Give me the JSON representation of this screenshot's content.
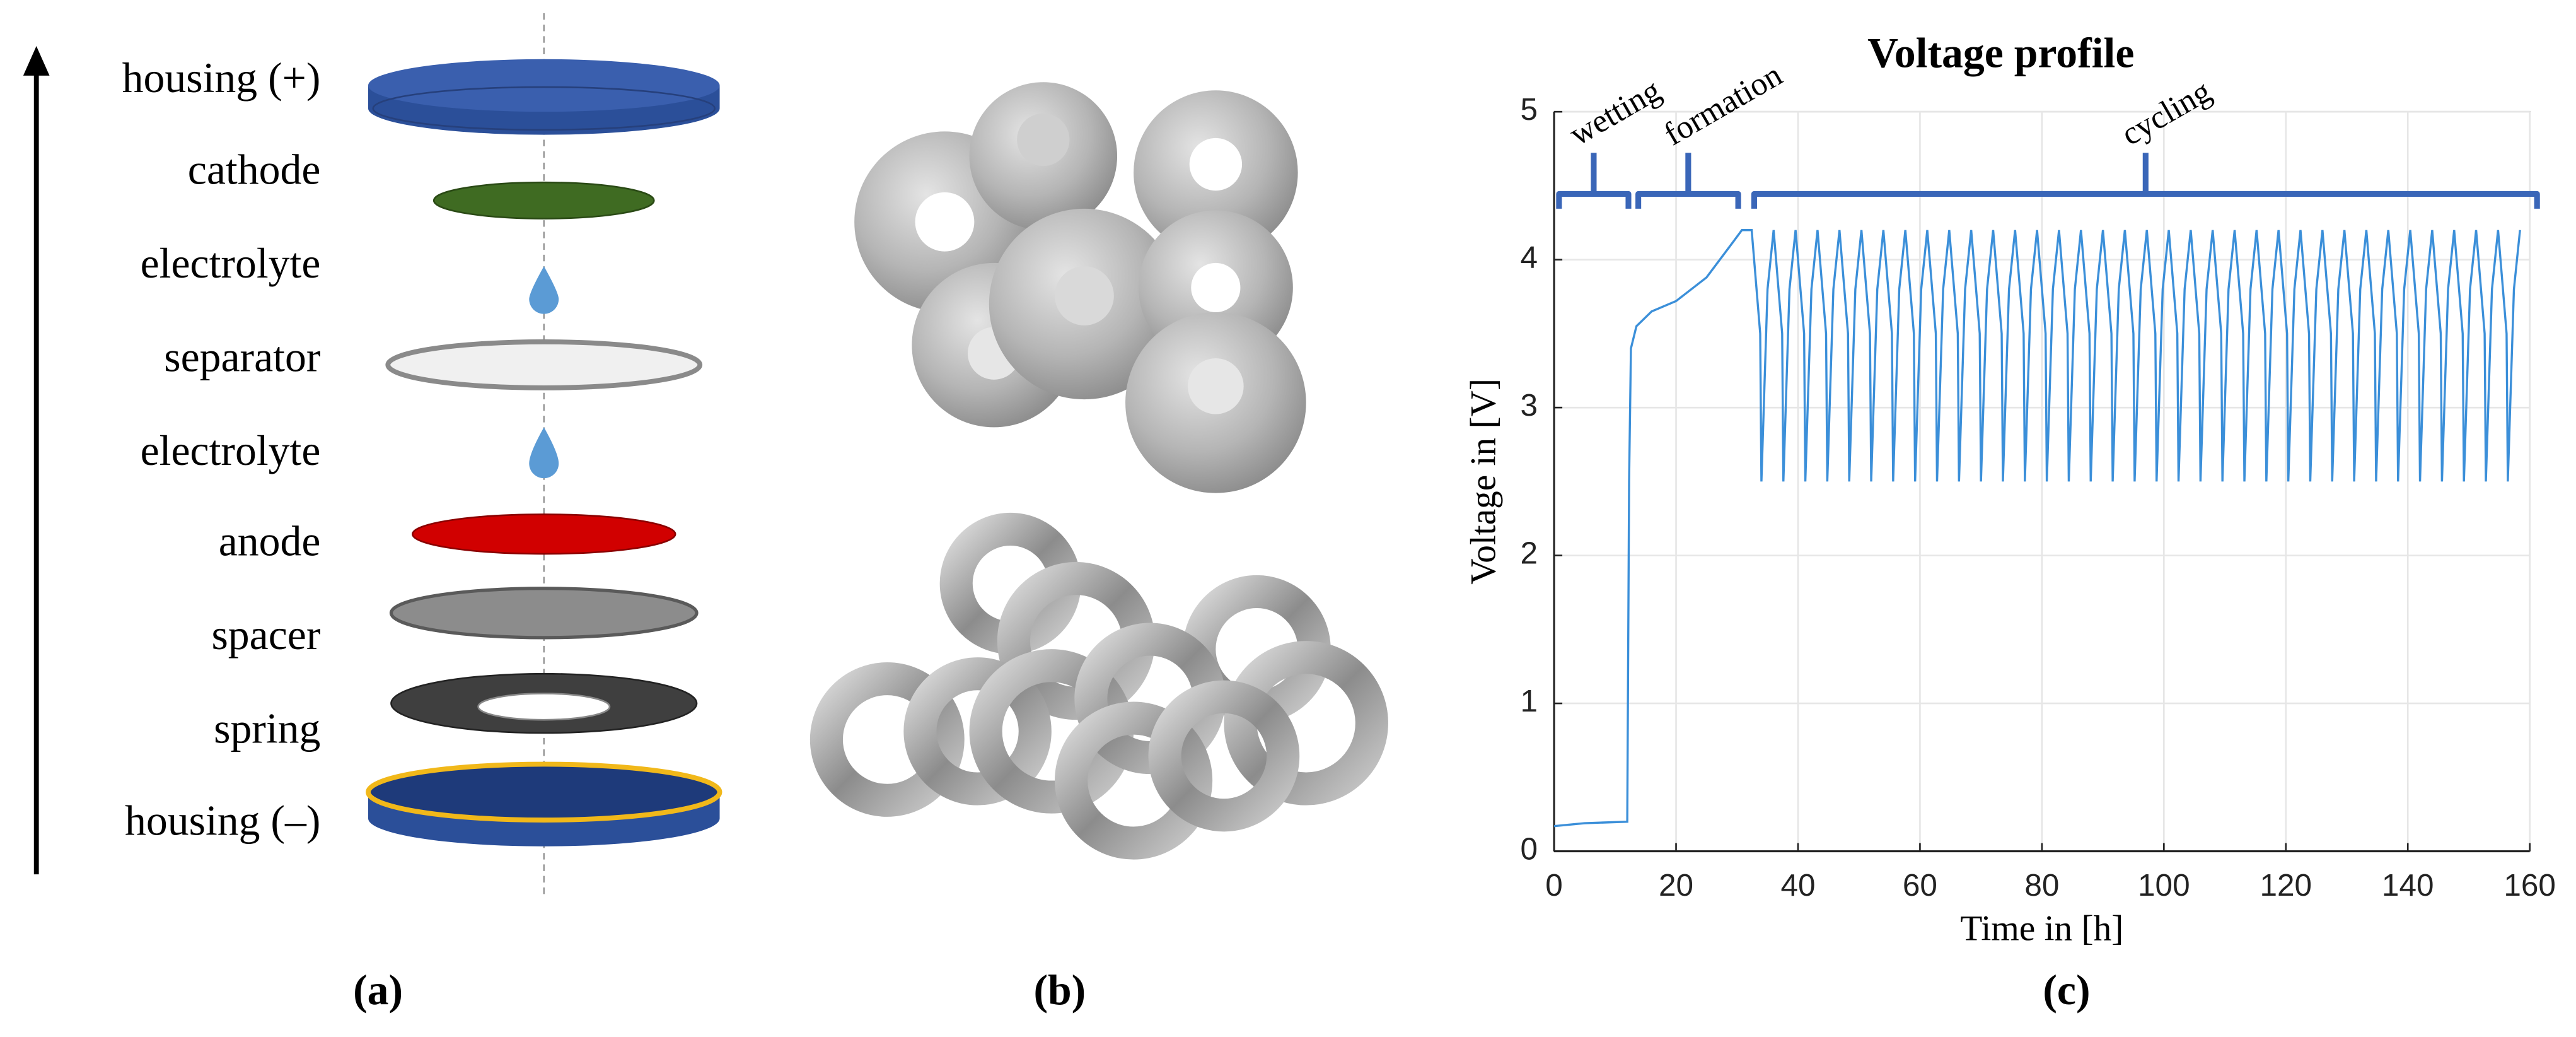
{
  "panels": [
    "(a)",
    "(b)",
    "(c)"
  ],
  "diagram": {
    "labels": [
      "housing (+)",
      "cathode",
      "electrolyte",
      "separator",
      "electrolyte",
      "anode",
      "spacer",
      "spring",
      "housing (–)"
    ]
  },
  "chart_data": {
    "type": "line",
    "title": "Voltage profile",
    "x_label": "Time in [h]",
    "y_label": "Voltage in [V]",
    "xlim": [
      0,
      160
    ],
    "xticks": [
      0,
      20,
      40,
      60,
      80,
      100,
      120,
      140,
      160
    ],
    "ylim": [
      0,
      5
    ],
    "yticks": [
      0,
      1,
      2,
      3,
      4,
      5
    ],
    "grid": true,
    "phases": [
      {
        "label": "wetting",
        "start": 0,
        "end": 13
      },
      {
        "label": "formation",
        "start": 13,
        "end": 31
      },
      {
        "label": "cycling",
        "start": 32,
        "end": 162
      }
    ],
    "series": [
      {
        "color": "#3b8fd9",
        "x": [
          0,
          5,
          12,
          12.3,
          12.6,
          13.5,
          16,
          20,
          25,
          29,
          30.8,
          32.4,
          33.8,
          34,
          35,
          36,
          37.4,
          37.6,
          38.6,
          39.6,
          41,
          41.2,
          42.2,
          43.2,
          44.6,
          44.8,
          45.8,
          46.8,
          48.2,
          48.4,
          49.4,
          50.4,
          51.8,
          52,
          53,
          54,
          55.4,
          55.6,
          56.6,
          57.6,
          59,
          59.2,
          60.2,
          61.2,
          62.6,
          62.8,
          63.8,
          64.8,
          66.2,
          66.4,
          67.4,
          68.4,
          69.8,
          70,
          71,
          72,
          73.4,
          73.6,
          74.6,
          75.6,
          77,
          77.2,
          78.2,
          79.2,
          80.6,
          80.8,
          81.8,
          82.8,
          84.2,
          84.4,
          85.4,
          86.4,
          87.8,
          88,
          89,
          90,
          91.4,
          91.6,
          92.6,
          93.6,
          95,
          95.2,
          96.2,
          97.2,
          98.6,
          98.8,
          99.8,
          100.8,
          102.2,
          102.4,
          103.4,
          104.4,
          105.8,
          106,
          107,
          108,
          109.4,
          109.6,
          110.6,
          111.6,
          113,
          113.2,
          114.2,
          115.2,
          116.6,
          116.8,
          117.8,
          118.8,
          120.2,
          120.4,
          121.4,
          122.4,
          123.8,
          124,
          125,
          126,
          127.4,
          127.6,
          128.6,
          129.6,
          131,
          131.2,
          132.2,
          133.2,
          134.6,
          134.8,
          135.8,
          136.8,
          138.2,
          138.4,
          139.4,
          140.4,
          141.8,
          142,
          143,
          144,
          145.4,
          145.6,
          146.6,
          147.6,
          149,
          149.2,
          150.2,
          151.2,
          152.6,
          152.8,
          153.8,
          154.8,
          156.2,
          156.4,
          157.4,
          158.4
        ],
        "values": [
          0.17,
          0.19,
          0.2,
          2.5,
          3.4,
          3.55,
          3.65,
          3.72,
          3.88,
          4.1,
          4.2,
          4.2,
          3.5,
          2.5,
          3.8,
          4.2,
          3.5,
          2.5,
          3.8,
          4.2,
          3.5,
          2.5,
          3.8,
          4.2,
          3.5,
          2.5,
          3.8,
          4.2,
          3.5,
          2.5,
          3.8,
          4.2,
          3.5,
          2.5,
          3.8,
          4.2,
          3.5,
          2.5,
          3.8,
          4.2,
          3.5,
          2.5,
          3.8,
          4.2,
          3.5,
          2.5,
          3.8,
          4.2,
          3.5,
          2.5,
          3.8,
          4.2,
          3.5,
          2.5,
          3.8,
          4.2,
          3.5,
          2.5,
          3.8,
          4.2,
          3.5,
          2.5,
          3.8,
          4.2,
          3.5,
          2.5,
          3.8,
          4.2,
          3.5,
          2.5,
          3.8,
          4.2,
          3.5,
          2.5,
          3.8,
          4.2,
          3.5,
          2.5,
          3.8,
          4.2,
          3.5,
          2.5,
          3.8,
          4.2,
          3.5,
          2.5,
          3.8,
          4.2,
          3.5,
          2.5,
          3.8,
          4.2,
          3.5,
          2.5,
          3.8,
          4.2,
          3.5,
          2.5,
          3.8,
          4.2,
          3.5,
          2.5,
          3.8,
          4.2,
          3.5,
          2.5,
          3.8,
          4.2,
          3.5,
          2.5,
          3.8,
          4.2,
          3.5,
          2.5,
          3.8,
          4.2,
          3.5,
          2.5,
          3.8,
          4.2,
          3.5,
          2.5,
          3.8,
          4.2,
          3.5,
          2.5,
          3.8,
          4.2,
          3.5,
          2.5,
          3.8,
          4.2,
          3.5,
          2.5,
          3.8,
          4.2,
          3.5,
          2.5,
          3.8,
          4.2,
          3.5,
          2.5,
          3.8,
          4.2,
          3.5,
          2.5,
          3.8,
          4.2,
          3.5,
          2.5,
          3.8,
          4.2
        ]
      }
    ],
    "phase_color": "#3a66b8"
  }
}
